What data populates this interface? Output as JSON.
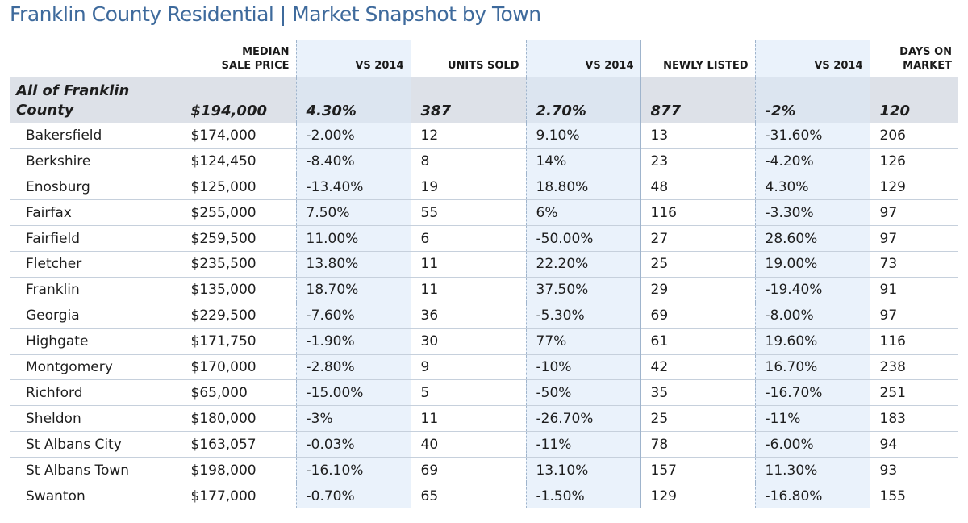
{
  "title": "Franklin County Residential | Market Snapshot by Town",
  "headers": {
    "median_sale_price": "MEDIAN\nSALE PRICE",
    "vs_2014_a": "VS 2014",
    "units_sold": "UNITS SOLD",
    "vs_2014_b": "VS 2014",
    "newly_listed": "NEWLY LISTED",
    "vs_2014_c": "VS 2014",
    "days_on_market": "DAYS ON\nMARKET"
  },
  "county": {
    "name": "All of Franklin County",
    "price": "$194,000",
    "price_vs": "4.30%",
    "units": "387",
    "units_vs": "2.70%",
    "listed": "877",
    "listed_vs": "-2%",
    "dom": "120"
  },
  "rows": [
    {
      "town": "Bakersfield",
      "price": "$174,000",
      "price_vs": "-2.00%",
      "units": "12",
      "units_vs": "9.10%",
      "listed": "13",
      "listed_vs": "-31.60%",
      "dom": "206"
    },
    {
      "town": "Berkshire",
      "price": "$124,450",
      "price_vs": "-8.40%",
      "units": "8",
      "units_vs": "14%",
      "listed": "23",
      "listed_vs": "-4.20%",
      "dom": "126"
    },
    {
      "town": "Enosburg",
      "price": "$125,000",
      "price_vs": "-13.40%",
      "units": "19",
      "units_vs": "18.80%",
      "listed": "48",
      "listed_vs": "4.30%",
      "dom": "129"
    },
    {
      "town": "Fairfax",
      "price": "$255,000",
      "price_vs": "7.50%",
      "units": "55",
      "units_vs": "6%",
      "listed": "116",
      "listed_vs": "-3.30%",
      "dom": "97"
    },
    {
      "town": "Fairfield",
      "price": "$259,500",
      "price_vs": "11.00%",
      "units": "6",
      "units_vs": "-50.00%",
      "listed": "27",
      "listed_vs": "28.60%",
      "dom": "97"
    },
    {
      "town": "Fletcher",
      "price": "$235,500",
      "price_vs": "13.80%",
      "units": "11",
      "units_vs": "22.20%",
      "listed": "25",
      "listed_vs": "19.00%",
      "dom": "73"
    },
    {
      "town": "Franklin",
      "price": "$135,000",
      "price_vs": "18.70%",
      "units": "11",
      "units_vs": "37.50%",
      "listed": "29",
      "listed_vs": "-19.40%",
      "dom": "91"
    },
    {
      "town": "Georgia",
      "price": "$229,500",
      "price_vs": "-7.60%",
      "units": "36",
      "units_vs": "-5.30%",
      "listed": "69",
      "listed_vs": "-8.00%",
      "dom": "97"
    },
    {
      "town": "Highgate",
      "price": "$171,750",
      "price_vs": "-1.90%",
      "units": "30",
      "units_vs": "77%",
      "listed": "61",
      "listed_vs": "19.60%",
      "dom": "116"
    },
    {
      "town": "Montgomery",
      "price": "$170,000",
      "price_vs": "-2.80%",
      "units": "9",
      "units_vs": "-10%",
      "listed": "42",
      "listed_vs": "16.70%",
      "dom": "238"
    },
    {
      "town": "Richford",
      "price": "$65,000",
      "price_vs": "-15.00%",
      "units": "5",
      "units_vs": "-50%",
      "listed": "35",
      "listed_vs": "-16.70%",
      "dom": "251"
    },
    {
      "town": "Sheldon",
      "price": "$180,000",
      "price_vs": "-3%",
      "units": "11",
      "units_vs": "-26.70%",
      "listed": "25",
      "listed_vs": "-11%",
      "dom": "183"
    },
    {
      "town": "St Albans City",
      "price": "$163,057",
      "price_vs": "-0.03%",
      "units": "40",
      "units_vs": "-11%",
      "listed": "78",
      "listed_vs": "-6.00%",
      "dom": "94"
    },
    {
      "town": "St Albans Town",
      "price": "$198,000",
      "price_vs": "-16.10%",
      "units": "69",
      "units_vs": "13.10%",
      "listed": "157",
      "listed_vs": "11.30%",
      "dom": "93"
    },
    {
      "town": "Swanton",
      "price": "$177,000",
      "price_vs": "-0.70%",
      "units": "65",
      "units_vs": "-1.50%",
      "listed": "129",
      "listed_vs": "-16.80%",
      "dom": "155"
    }
  ],
  "colors": {
    "title": "#3e6a9c",
    "shaded_column": "#eaf2fb",
    "county_row": "#dde1e8",
    "divider": "#9fb4cc"
  }
}
